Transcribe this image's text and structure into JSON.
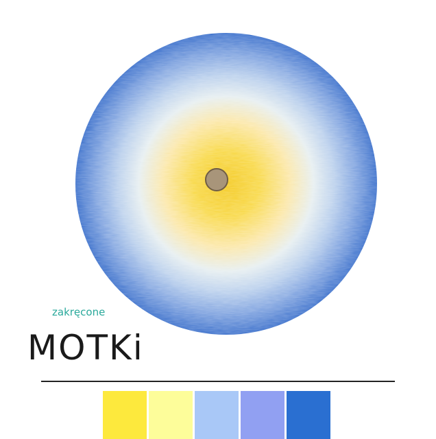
{
  "logo": {
    "tagline": "zakręcone",
    "name": "MOTKi"
  }
}
